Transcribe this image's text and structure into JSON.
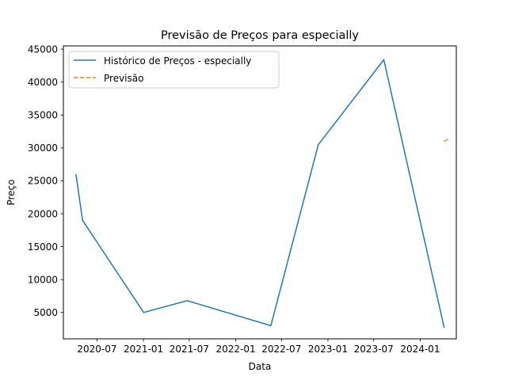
{
  "chart_data": {
    "type": "line",
    "title": "Previsão de Preços para especially",
    "xlabel": "Data",
    "ylabel": "Preço",
    "x_ticks": [
      "2020-07",
      "2021-01",
      "2021-07",
      "2022-01",
      "2022-07",
      "2023-01",
      "2023-07",
      "2024-01"
    ],
    "xlim": [
      "2020-02-19",
      "2024-05-23"
    ],
    "y_ticks": [
      5000,
      10000,
      15000,
      20000,
      25000,
      30000,
      35000,
      40000,
      45000
    ],
    "ylim": [
      1000,
      45500
    ],
    "grid": false,
    "legend_position": "top-left",
    "series": [
      {
        "name": "Histórico de Preços - especially",
        "style": "solid",
        "color": "#1f77b4",
        "points": [
          [
            "2020-04-09",
            26000
          ],
          [
            "2020-05-05",
            19000
          ],
          [
            "2021-01-02",
            5000
          ],
          [
            "2021-06-23",
            6800
          ],
          [
            "2022-05-20",
            3000
          ],
          [
            "2022-11-24",
            30500
          ],
          [
            "2023-08-10",
            43400
          ],
          [
            "2024-04-05",
            2700
          ]
        ]
      },
      {
        "name": "Previsão",
        "style": "dashed",
        "color": "#ff7f0e",
        "points": [
          [
            "2024-04-05",
            31000
          ],
          [
            "2024-04-23",
            31400
          ]
        ]
      }
    ]
  }
}
